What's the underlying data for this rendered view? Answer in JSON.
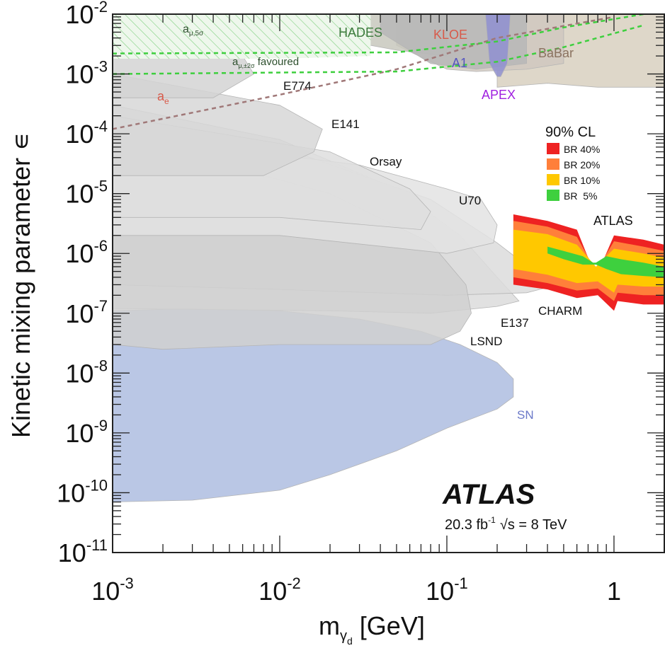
{
  "chart_data": {
    "type": "area",
    "title": "",
    "xlabel_main": "m",
    "xlabel_sub": "γ",
    "xlabel_subsub": "d",
    "xlabel_unit": " [GeV]",
    "ylabel": "Kinetic mixing parameter ∊",
    "x_scale": "log",
    "y_scale": "log",
    "xlim": [
      0.001,
      2.0
    ],
    "ylim": [
      1e-11,
      0.01
    ],
    "x_ticks": [
      {
        "value": 0.001,
        "base": "10",
        "exp": "-3"
      },
      {
        "value": 0.01,
        "base": "10",
        "exp": "-2"
      },
      {
        "value": 0.1,
        "base": "10",
        "exp": "-1"
      },
      {
        "value": 1,
        "base": "1",
        "exp": ""
      }
    ],
    "y_ticks": [
      {
        "value": 0.01,
        "base": "10",
        "exp": "-2"
      },
      {
        "value": 0.001,
        "base": "10",
        "exp": "-3"
      },
      {
        "value": 0.0001,
        "base": "10",
        "exp": "-4"
      },
      {
        "value": 1e-05,
        "base": "10",
        "exp": "-5"
      },
      {
        "value": 1e-06,
        "base": "10",
        "exp": "-6"
      },
      {
        "value": 1e-07,
        "base": "10",
        "exp": "-7"
      },
      {
        "value": 1e-08,
        "base": "10",
        "exp": "-8"
      },
      {
        "value": 1e-09,
        "base": "10",
        "exp": "-9"
      },
      {
        "value": 1e-10,
        "base": "10",
        "exp": "-10"
      },
      {
        "value": 1e-11,
        "base": "10",
        "exp": "-11"
      }
    ],
    "regions": [
      {
        "name": "SN",
        "color": "#aebde0",
        "points": [
          [
            0.001,
            1.1e-07
          ],
          [
            0.003,
            1.2e-07
          ],
          [
            0.01,
            1.1e-07
          ],
          [
            0.03,
            8e-08
          ],
          [
            0.07,
            5e-08
          ],
          [
            0.12,
            3e-08
          ],
          [
            0.2,
            1.5e-08
          ],
          [
            0.25,
            8e-09
          ],
          [
            0.25,
            4e-09
          ],
          [
            0.2,
            2.5e-09
          ],
          [
            0.1,
            1.2e-09
          ],
          [
            0.05,
            5e-10
          ],
          [
            0.02,
            2e-10
          ],
          [
            0.01,
            1.1e-10
          ],
          [
            0.003,
            7.5e-11
          ],
          [
            0.001,
            7e-11
          ]
        ]
      },
      {
        "name": "E137",
        "color": "#dcdcdc",
        "points": [
          [
            0.001,
            0.0003
          ],
          [
            0.01,
            8e-05
          ],
          [
            0.05,
            1.2e-05
          ],
          [
            0.12,
            2e-06
          ],
          [
            0.2,
            4e-07
          ],
          [
            0.27,
            1.6e-07
          ],
          [
            0.2,
            1.3e-07
          ],
          [
            0.08,
            1e-07
          ],
          [
            0.02,
            1.1e-07
          ],
          [
            0.001,
            1.2e-07
          ]
        ]
      },
      {
        "name": "CHARM",
        "color": "#dcdcdc",
        "points": [
          [
            0.001,
            0.0002
          ],
          [
            0.01,
            6e-05
          ],
          [
            0.08,
            8e-06
          ],
          [
            0.2,
            1.5e-06
          ],
          [
            0.35,
            4.5e-07
          ],
          [
            0.42,
            2.8e-07
          ],
          [
            0.3,
            2.2e-07
          ],
          [
            0.1,
            2e-07
          ],
          [
            0.01,
            2.5e-07
          ],
          [
            0.001,
            3e-07
          ]
        ]
      },
      {
        "name": "LSND",
        "color": "#d0d0d0",
        "points": [
          [
            0.001,
            0.0001
          ],
          [
            0.02,
            1e-05
          ],
          [
            0.08,
            1.5e-06
          ],
          [
            0.13,
            3e-07
          ],
          [
            0.14,
            1e-07
          ],
          [
            0.12,
            5e-08
          ],
          [
            0.08,
            3e-08
          ],
          [
            0.01,
            3e-08
          ],
          [
            0.002,
            2.5e-08
          ],
          [
            0.001,
            3e-08
          ]
        ]
      },
      {
        "name": "U70",
        "color": "#e3e3e3",
        "points": [
          [
            0.001,
            0.0001
          ],
          [
            0.03,
            3e-05
          ],
          [
            0.1,
            1.2e-05
          ],
          [
            0.16,
            8e-06
          ],
          [
            0.2,
            3e-06
          ],
          [
            0.19,
            1.5e-06
          ],
          [
            0.1,
            1e-06
          ],
          [
            0.01,
            2e-06
          ],
          [
            0.001,
            2e-06
          ]
        ]
      },
      {
        "name": "Orsay",
        "color": "#dedede",
        "points": [
          [
            0.001,
            0.0002
          ],
          [
            0.02,
            5e-05
          ],
          [
            0.06,
            1.2e-05
          ],
          [
            0.08,
            5e-06
          ],
          [
            0.07,
            2.5e-06
          ],
          [
            0.01,
            4e-06
          ],
          [
            0.001,
            4e-06
          ]
        ]
      },
      {
        "name": "E141",
        "color": "#d7d7d7",
        "points": [
          [
            0.001,
            0.001
          ],
          [
            0.01,
            0.0003
          ],
          [
            0.018,
            0.00012
          ],
          [
            0.016,
            5e-05
          ],
          [
            0.008,
            2e-05
          ],
          [
            0.001,
            2e-05
          ]
        ]
      },
      {
        "name": "E774",
        "color": "#d4d4d4",
        "points": [
          [
            0.001,
            0.002
          ],
          [
            0.006,
            0.002
          ],
          [
            0.007,
            0.001
          ],
          [
            0.004,
            0.0004
          ],
          [
            0.001,
            0.0004
          ]
        ]
      },
      {
        "name": "BaBar",
        "color": "#d8d0bf",
        "points": [
          [
            0.2,
            0.0006
          ],
          [
            0.4,
            0.0007
          ],
          [
            0.8,
            0.0006
          ],
          [
            1.2,
            0.0006
          ],
          [
            2,
            0.0006
          ],
          [
            2,
            0.01
          ],
          [
            0.2,
            0.01
          ]
        ]
      },
      {
        "name": "KLOE",
        "color": "#d0c8c0",
        "points": [
          [
            0.05,
            0.003
          ],
          [
            0.1,
            0.0012
          ],
          [
            0.15,
            0.0011
          ],
          [
            0.3,
            0.0012
          ],
          [
            0.5,
            0.0015
          ],
          [
            0.5,
            0.01
          ],
          [
            0.05,
            0.01
          ]
        ]
      },
      {
        "name": "HADES",
        "color": "#c8c8bd",
        "points": [
          [
            0.02,
            0.004
          ],
          [
            0.05,
            0.0025
          ],
          [
            0.1,
            0.002
          ],
          [
            0.1,
            0.01
          ],
          [
            0.02,
            0.01
          ]
        ]
      },
      {
        "name": "A1",
        "color": "#b7b7b7",
        "points": [
          [
            0.04,
            0.005
          ],
          [
            0.08,
            0.0015
          ],
          [
            0.15,
            0.0012
          ],
          [
            0.3,
            0.0015
          ],
          [
            0.3,
            0.01
          ],
          [
            0.04,
            0.01
          ]
        ]
      },
      {
        "name": "APEX",
        "color": "#8f8fd0",
        "points": [
          [
            0.17,
            0.01
          ],
          [
            0.18,
            0.0015
          ],
          [
            0.2,
            0.0009
          ],
          [
            0.21,
            0.0009
          ],
          [
            0.23,
            0.0015
          ],
          [
            0.24,
            0.01
          ]
        ]
      }
    ],
    "atlas_bands": [
      {
        "name": "BR 40%",
        "color": "#ee2222",
        "upper": [
          [
            0.25,
            4.5e-06
          ],
          [
            0.4,
            3.5e-06
          ],
          [
            0.6,
            2.5e-06
          ],
          [
            0.78,
            4e-07
          ],
          [
            1.0,
            2e-06
          ],
          [
            1.5,
            1.7e-06
          ],
          [
            2.0,
            1.4e-06
          ]
        ],
        "lower": [
          [
            2.0,
            1.4e-07
          ],
          [
            1.5,
            1.4e-07
          ],
          [
            1.05,
            1.6e-07
          ],
          [
            1.0,
            1.1e-07
          ],
          [
            0.8,
            2e-07
          ],
          [
            0.6,
            1.8e-07
          ],
          [
            0.4,
            2.5e-07
          ],
          [
            0.25,
            3e-07
          ]
        ]
      },
      {
        "name": "BR 20%",
        "color": "#ff7f3a",
        "upper": [
          [
            0.25,
            3.5e-06
          ],
          [
            0.4,
            2.8e-06
          ],
          [
            0.6,
            1.9e-06
          ],
          [
            0.78,
            5e-07
          ],
          [
            1.0,
            1.6e-06
          ],
          [
            1.5,
            1.3e-06
          ],
          [
            2.0,
            1.1e-06
          ]
        ],
        "lower": [
          [
            2.0,
            2e-07
          ],
          [
            1.5,
            2e-07
          ],
          [
            1.05,
            2.2e-07
          ],
          [
            1.0,
            1.6e-07
          ],
          [
            0.8,
            2.6e-07
          ],
          [
            0.6,
            2.4e-07
          ],
          [
            0.4,
            3.2e-07
          ],
          [
            0.25,
            4e-07
          ]
        ]
      },
      {
        "name": "BR 10%",
        "color": "#ffc800",
        "upper": [
          [
            0.25,
            2.5e-06
          ],
          [
            0.4,
            2.1e-06
          ],
          [
            0.6,
            1.4e-06
          ],
          [
            0.78,
            6e-07
          ],
          [
            1.0,
            1.2e-06
          ],
          [
            1.5,
            1e-06
          ],
          [
            2.0,
            8.5e-07
          ]
        ],
        "lower": [
          [
            2.0,
            2.8e-07
          ],
          [
            1.5,
            2.8e-07
          ],
          [
            1.05,
            3e-07
          ],
          [
            1.0,
            2.2e-07
          ],
          [
            0.8,
            3.4e-07
          ],
          [
            0.6,
            3.2e-07
          ],
          [
            0.4,
            4.4e-07
          ],
          [
            0.25,
            5.5e-07
          ]
        ]
      },
      {
        "name": "BR  5%",
        "color": "#3ed03e",
        "upper": [
          [
            0.4,
            1.3e-06
          ],
          [
            0.5,
            1.1e-06
          ],
          [
            0.65,
            9e-07
          ],
          [
            0.75,
            7e-07
          ],
          [
            0.78,
            7e-07
          ],
          [
            0.9,
            9e-07
          ],
          [
            1.1,
            8e-07
          ],
          [
            1.5,
            7e-07
          ],
          [
            2.0,
            6e-07
          ]
        ],
        "lower": [
          [
            2.0,
            4e-07
          ],
          [
            1.5,
            4.2e-07
          ],
          [
            1.1,
            4.5e-07
          ],
          [
            0.9,
            5.5e-07
          ],
          [
            0.78,
            6.5e-07
          ],
          [
            0.65,
            6.5e-07
          ],
          [
            0.5,
            8e-07
          ],
          [
            0.4,
            1e-06
          ]
        ]
      }
    ],
    "lines": [
      {
        "name": "a_e",
        "color": "#a07878",
        "points": [
          [
            0.001,
            0.00012
          ],
          [
            0.01,
            0.00045
          ],
          [
            0.05,
            0.0012
          ],
          [
            0.2,
            0.004
          ],
          [
            1.0,
            0.009
          ]
        ]
      },
      {
        "name": "a_mu_2sigma_upper",
        "color": "#3ecf3e",
        "points": [
          [
            0.001,
            0.0022
          ],
          [
            0.05,
            0.0023
          ],
          [
            0.2,
            0.0035
          ],
          [
            0.5,
            0.006
          ],
          [
            1.5,
            0.01
          ]
        ]
      },
      {
        "name": "a_mu_2sigma_lower",
        "color": "#3ecf3e",
        "points": [
          [
            0.001,
            0.001
          ],
          [
            0.05,
            0.0011
          ],
          [
            0.2,
            0.0016
          ],
          [
            0.5,
            0.0028
          ],
          [
            1.5,
            0.0065
          ]
        ]
      }
    ],
    "hatched_region": {
      "name": "a_mu_5sigma",
      "color": "#6fcf6f",
      "points": [
        [
          0.001,
          0.0018
        ],
        [
          0.01,
          0.0018
        ],
        [
          0.035,
          0.002
        ],
        [
          0.035,
          0.01
        ],
        [
          0.001,
          0.01
        ]
      ]
    },
    "labels": {
      "hades": "HADES",
      "kloe": "KLOE",
      "babar": "BaBar",
      "a1": "A1",
      "apex": "APEX",
      "e774": "E774",
      "e141": "E141",
      "orsay": "Orsay",
      "u70": "U70",
      "atlas_region": "ATLAS",
      "charm": "CHARM",
      "e137": "E137",
      "lsnd": "LSND",
      "sn": "SN",
      "a_mu5_main": "a",
      "a_mu5_sub": "μ,5σ",
      "a_mu2_main": "a",
      "a_mu2_sub": "μ,±2σ",
      "a_mu2_tail": " favoured",
      "a_e_main": "a",
      "a_e_sub": "e"
    },
    "legend": {
      "title": "90% CL",
      "position": "upper-right",
      "entries": [
        {
          "label": "BR 40%",
          "color": "#ee2222"
        },
        {
          "label": "BR 20%",
          "color": "#ff7f3a"
        },
        {
          "label": "BR 10%",
          "color": "#ffc800"
        },
        {
          "label": "BR  5%",
          "color": "#3ed03e"
        }
      ]
    },
    "experiment": "ATLAS",
    "lumi_value": "20.3 fb",
    "lumi_exp": "-1",
    "energy_root": "√s",
    "energy_text": " = 8 TeV"
  }
}
